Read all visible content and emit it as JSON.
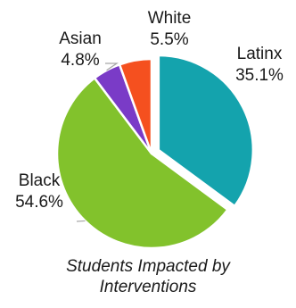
{
  "chart_data": {
    "type": "pie",
    "title": "Students Impacted by Interventions",
    "title_lines": [
      "Students Impacted by",
      "Interventions"
    ],
    "slices": [
      {
        "name": "Latinx",
        "value": 35.1,
        "label": "35.1%",
        "color": "#14a3ad",
        "exploded": true
      },
      {
        "name": "Black",
        "value": 54.6,
        "label": "54.6%",
        "color": "#82c22c",
        "exploded": false
      },
      {
        "name": "Asian",
        "value": 4.8,
        "label": "4.8%",
        "color": "#7a3bc7",
        "exploded": false
      },
      {
        "name": "White",
        "value": 5.5,
        "label": "5.5%",
        "color": "#f5501f",
        "exploded": false
      }
    ],
    "start_angle": "12 o'clock",
    "direction": "clockwise",
    "legend": "none",
    "data_labels": "category and percent, outside"
  }
}
